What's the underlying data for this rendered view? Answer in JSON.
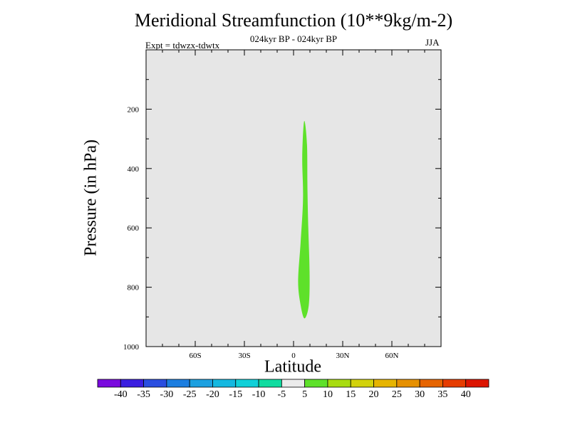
{
  "header": {
    "title": "Meridional Streamfunction (10**9kg/m-2)",
    "subtitle": "024kyr BP - 024kyr BP",
    "experiment": "Expt = tdwzx-tdwtx",
    "season": "JJA"
  },
  "chart_data": {
    "type": "heatmap",
    "title": "Meridional Streamfunction (10**9kg/m-2)",
    "subtitle": "024kyr BP - 024kyr BP",
    "xlabel": "Latitude",
    "ylabel": "Pressure (in hPa)",
    "xlim": [
      -90,
      90
    ],
    "ylim": [
      1000,
      0
    ],
    "x_ticks": [
      {
        "value": -60,
        "label": "60S"
      },
      {
        "value": -30,
        "label": "30S"
      },
      {
        "value": 0,
        "label": "0"
      },
      {
        "value": 30,
        "label": "30N"
      },
      {
        "value": 60,
        "label": "60N"
      }
    ],
    "y_ticks": [
      {
        "value": 200,
        "label": "200"
      },
      {
        "value": 400,
        "label": "400"
      },
      {
        "value": 600,
        "label": "600"
      },
      {
        "value": 800,
        "label": "800"
      },
      {
        "value": 1000,
        "label": "1000"
      }
    ],
    "background_color": "#e6e6e6",
    "contour_regions": [
      {
        "level_range": [
          5,
          10
        ],
        "color": "#5ee12a",
        "outline": [
          [
            6.5,
            240
          ],
          [
            8.2,
            320
          ],
          [
            8.5,
            480
          ],
          [
            9.0,
            600
          ],
          [
            9.8,
            750
          ],
          [
            9.3,
            860
          ],
          [
            6.7,
            905
          ],
          [
            4.3,
            860
          ],
          [
            2.8,
            780
          ],
          [
            4.3,
            650
          ],
          [
            5.8,
            500
          ],
          [
            5.3,
            360
          ]
        ]
      }
    ],
    "colorbar": {
      "labels": [
        "-40",
        "-35",
        "-30",
        "-25",
        "-20",
        "-15",
        "-10",
        "-5",
        "5",
        "10",
        "15",
        "20",
        "25",
        "30",
        "35",
        "40"
      ],
      "colors": [
        "#7a0ade",
        "#3b1ee0",
        "#2a4ee0",
        "#1c7ee0",
        "#1ca0e0",
        "#14b8e0",
        "#10d0d8",
        "#10dca0",
        "#ebebeb",
        "#5ee12a",
        "#a8dc10",
        "#d2d20c",
        "#e6b400",
        "#e69000",
        "#e66400",
        "#e63c00",
        "#dc1400"
      ]
    }
  }
}
